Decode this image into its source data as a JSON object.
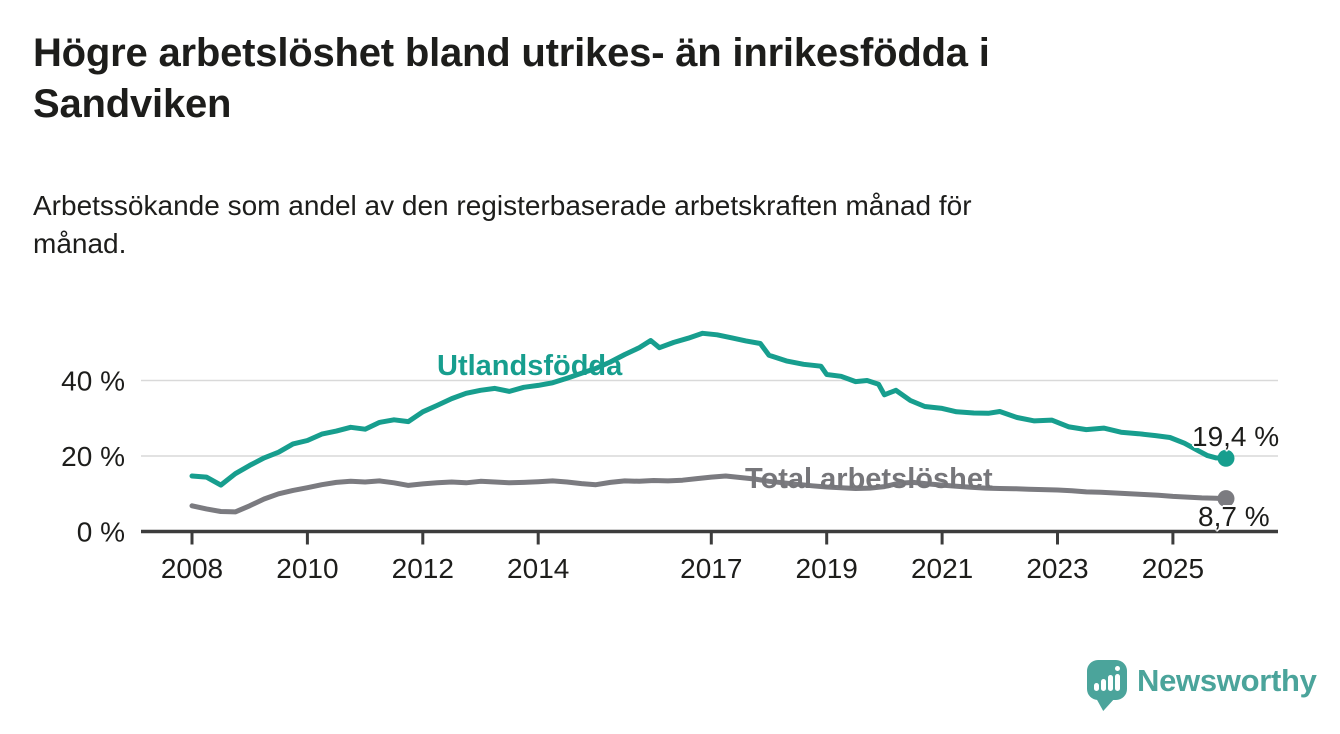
{
  "header": {
    "title_lines": [
      "Högre arbetslöshet bland utrikes- än inrikesfödda i",
      "Sandviken"
    ],
    "subtitle_lines": [
      "Arbetssökande som andel av den registerbaserade arbetskraften månad för",
      "månad."
    ]
  },
  "chart_data": {
    "type": "line",
    "title": "Högre arbetslöshet bland utrikes- än inrikesfödda i Sandviken",
    "subtitle": "Arbetssökande som andel av den registerbaserade arbetskraften månad för månad.",
    "unit": "%",
    "xlabel": "",
    "ylabel": "",
    "xlim": [
      2007.1,
      2026.8
    ],
    "ylim": [
      0,
      55
    ],
    "grid": "horizontal",
    "legend_position": "inline-labels",
    "x_ticks": [
      2008,
      2010,
      2012,
      2014,
      2017,
      2019,
      2021,
      2023,
      2025
    ],
    "x_tick_labels": [
      "2008",
      "2010",
      "2012",
      "2014",
      "2017",
      "2019",
      "2021",
      "2023",
      "2025"
    ],
    "y_ticks": [
      0,
      20,
      40
    ],
    "y_tick_labels": [
      "0 %",
      "20 %",
      "40 %"
    ],
    "axis_color": "#3c3c3c",
    "gridline_color": "#d9d9d9",
    "series": [
      {
        "name": "Utlandsfödda",
        "color": "#179e8e",
        "end_value": 19.4,
        "end_label": "19,4 %",
        "points": [
          [
            2008.0,
            14.7
          ],
          [
            2008.25,
            14.4
          ],
          [
            2008.5,
            12.3
          ],
          [
            2008.75,
            15.3
          ],
          [
            2009.0,
            17.5
          ],
          [
            2009.25,
            19.5
          ],
          [
            2009.5,
            21.0
          ],
          [
            2009.75,
            23.2
          ],
          [
            2010.0,
            24.1
          ],
          [
            2010.25,
            25.8
          ],
          [
            2010.5,
            26.6
          ],
          [
            2010.75,
            27.6
          ],
          [
            2011.0,
            27.1
          ],
          [
            2011.25,
            28.9
          ],
          [
            2011.5,
            29.6
          ],
          [
            2011.75,
            29.1
          ],
          [
            2012.0,
            31.7
          ],
          [
            2012.25,
            33.4
          ],
          [
            2012.5,
            35.2
          ],
          [
            2012.75,
            36.6
          ],
          [
            2013.0,
            37.4
          ],
          [
            2013.25,
            37.9
          ],
          [
            2013.5,
            37.1
          ],
          [
            2013.75,
            38.2
          ],
          [
            2014.0,
            38.7
          ],
          [
            2014.25,
            39.4
          ],
          [
            2014.5,
            40.6
          ],
          [
            2014.75,
            41.9
          ],
          [
            2015.0,
            43.2
          ],
          [
            2015.25,
            44.9
          ],
          [
            2015.5,
            46.9
          ],
          [
            2015.75,
            48.7
          ],
          [
            2015.95,
            50.6
          ],
          [
            2016.1,
            48.7
          ],
          [
            2016.35,
            50.1
          ],
          [
            2016.6,
            51.2
          ],
          [
            2016.85,
            52.5
          ],
          [
            2017.1,
            52.1
          ],
          [
            2017.35,
            51.3
          ],
          [
            2017.6,
            50.5
          ],
          [
            2017.85,
            49.8
          ],
          [
            2018.0,
            46.7
          ],
          [
            2018.3,
            45.2
          ],
          [
            2018.6,
            44.3
          ],
          [
            2018.9,
            43.8
          ],
          [
            2019.0,
            41.6
          ],
          [
            2019.25,
            41.1
          ],
          [
            2019.5,
            39.7
          ],
          [
            2019.7,
            40.0
          ],
          [
            2019.9,
            39.0
          ],
          [
            2020.0,
            36.2
          ],
          [
            2020.2,
            37.4
          ],
          [
            2020.45,
            34.7
          ],
          [
            2020.7,
            33.1
          ],
          [
            2021.0,
            32.6
          ],
          [
            2021.25,
            31.7
          ],
          [
            2021.55,
            31.4
          ],
          [
            2021.8,
            31.3
          ],
          [
            2022.0,
            31.8
          ],
          [
            2022.3,
            30.2
          ],
          [
            2022.6,
            29.3
          ],
          [
            2022.9,
            29.5
          ],
          [
            2023.2,
            27.7
          ],
          [
            2023.5,
            27.0
          ],
          [
            2023.8,
            27.4
          ],
          [
            2024.1,
            26.3
          ],
          [
            2024.4,
            25.9
          ],
          [
            2024.7,
            25.4
          ],
          [
            2024.95,
            24.9
          ],
          [
            2025.2,
            23.4
          ],
          [
            2025.45,
            21.3
          ],
          [
            2025.6,
            20.1
          ],
          [
            2025.75,
            19.5
          ],
          [
            2025.92,
            19.4
          ]
        ]
      },
      {
        "name": "Total arbetslöshet",
        "color": "#7b7b80",
        "end_value": 8.7,
        "end_label": "8,7 %",
        "points": [
          [
            2008.0,
            6.8
          ],
          [
            2008.25,
            6.0
          ],
          [
            2008.5,
            5.3
          ],
          [
            2008.75,
            5.2
          ],
          [
            2009.0,
            6.8
          ],
          [
            2009.25,
            8.6
          ],
          [
            2009.5,
            10.0
          ],
          [
            2009.75,
            10.9
          ],
          [
            2010.0,
            11.6
          ],
          [
            2010.25,
            12.4
          ],
          [
            2010.5,
            13.0
          ],
          [
            2010.75,
            13.3
          ],
          [
            2011.0,
            13.1
          ],
          [
            2011.25,
            13.4
          ],
          [
            2011.5,
            12.9
          ],
          [
            2011.75,
            12.2
          ],
          [
            2012.0,
            12.6
          ],
          [
            2012.25,
            12.9
          ],
          [
            2012.5,
            13.1
          ],
          [
            2012.75,
            12.9
          ],
          [
            2013.0,
            13.3
          ],
          [
            2013.25,
            13.1
          ],
          [
            2013.5,
            12.9
          ],
          [
            2013.75,
            13.0
          ],
          [
            2014.0,
            13.2
          ],
          [
            2014.25,
            13.4
          ],
          [
            2014.5,
            13.1
          ],
          [
            2014.75,
            12.7
          ],
          [
            2015.0,
            12.4
          ],
          [
            2015.25,
            13.0
          ],
          [
            2015.5,
            13.4
          ],
          [
            2015.75,
            13.3
          ],
          [
            2016.0,
            13.5
          ],
          [
            2016.25,
            13.4
          ],
          [
            2016.5,
            13.6
          ],
          [
            2016.75,
            14.0
          ],
          [
            2017.0,
            14.4
          ],
          [
            2017.25,
            14.7
          ],
          [
            2017.5,
            14.3
          ],
          [
            2017.75,
            13.9
          ],
          [
            2018.0,
            13.3
          ],
          [
            2018.25,
            12.9
          ],
          [
            2018.5,
            12.5
          ],
          [
            2018.75,
            12.1
          ],
          [
            2019.0,
            11.8
          ],
          [
            2019.25,
            11.6
          ],
          [
            2019.5,
            11.4
          ],
          [
            2019.75,
            11.5
          ],
          [
            2020.0,
            11.9
          ],
          [
            2020.25,
            12.8
          ],
          [
            2020.5,
            13.0
          ],
          [
            2020.75,
            12.6
          ],
          [
            2021.0,
            12.3
          ],
          [
            2021.25,
            12.0
          ],
          [
            2021.5,
            11.7
          ],
          [
            2021.75,
            11.5
          ],
          [
            2022.0,
            11.4
          ],
          [
            2022.25,
            11.35
          ],
          [
            2022.5,
            11.2
          ],
          [
            2022.75,
            11.1
          ],
          [
            2023.0,
            11.0
          ],
          [
            2023.25,
            10.8
          ],
          [
            2023.5,
            10.5
          ],
          [
            2023.75,
            10.4
          ],
          [
            2024.0,
            10.2
          ],
          [
            2024.25,
            10.0
          ],
          [
            2024.5,
            9.8
          ],
          [
            2024.75,
            9.6
          ],
          [
            2025.0,
            9.3
          ],
          [
            2025.25,
            9.1
          ],
          [
            2025.5,
            8.9
          ],
          [
            2025.75,
            8.8
          ],
          [
            2025.92,
            8.7
          ]
        ]
      }
    ]
  },
  "footer": {
    "brand": "Newsworthy",
    "brand_color": "#4ba49b",
    "logo_icon": "speech-bubble-bar-chart-icon"
  }
}
